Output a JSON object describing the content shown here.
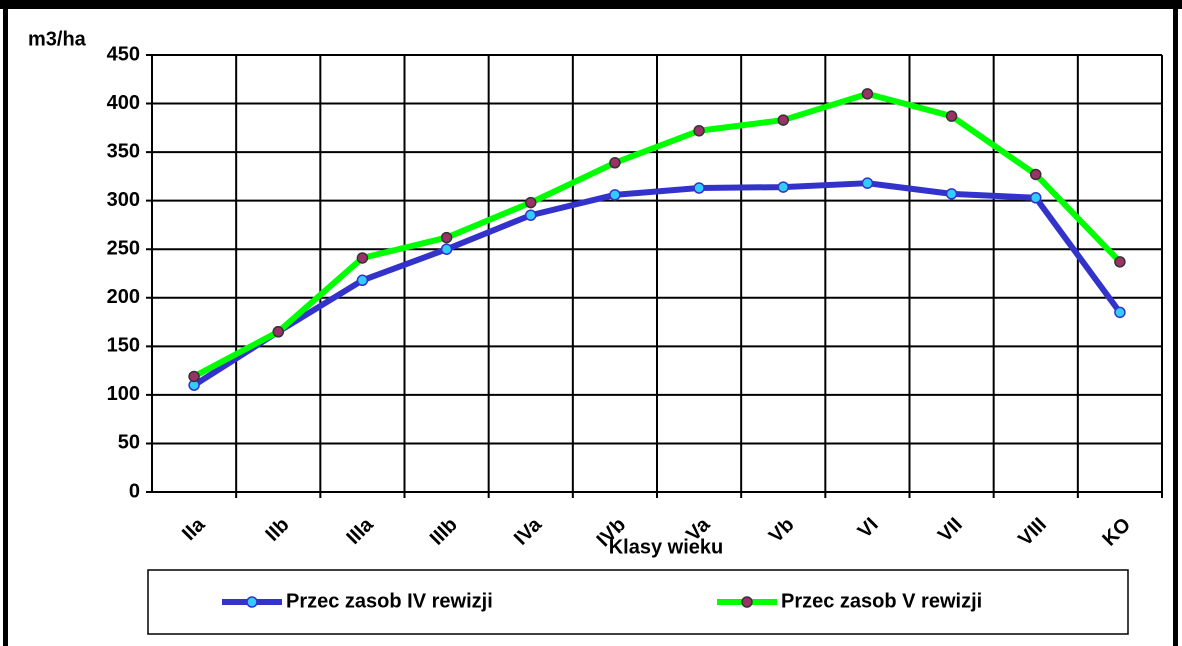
{
  "chart_data": {
    "type": "line",
    "y_label": "m3/ha",
    "x_label": "Klasy wieku",
    "categories": [
      "IIa",
      "IIb",
      "IIIa",
      "IIIb",
      "IVa",
      "IVb",
      "Va",
      "Vb",
      "VI",
      "VII",
      "VIII",
      "KO"
    ],
    "series": [
      {
        "name": "Przec zasob IV rewizji",
        "color": "#3333cc",
        "marker_color": "#33ccff",
        "values": [
          110,
          165,
          218,
          250,
          285,
          306,
          313,
          314,
          318,
          307,
          303,
          185
        ]
      },
      {
        "name": "Przec zasob V rewizji",
        "color": "#00ff00",
        "marker_color": "#993366",
        "values": [
          119,
          165,
          241,
          262,
          298,
          339,
          372,
          383,
          410,
          387,
          327,
          237
        ]
      }
    ],
    "ylim": [
      0,
      450
    ],
    "yticks": [
      0,
      50,
      100,
      150,
      200,
      250,
      300,
      350,
      400,
      450
    ],
    "grid": true
  }
}
